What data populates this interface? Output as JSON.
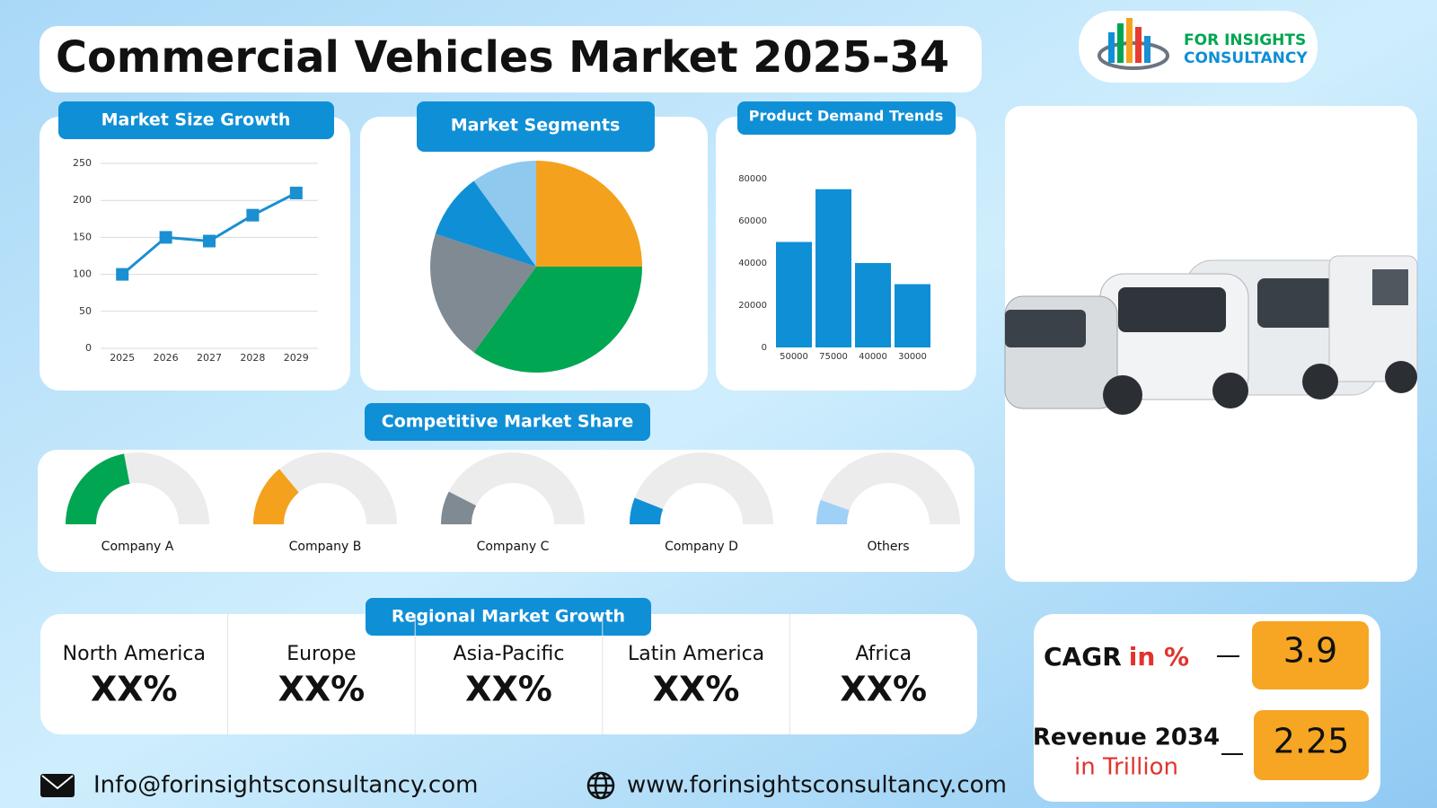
{
  "header": {
    "title": "Commercial Vehicles Market 2025-34",
    "logo_line1": "FOR INSIGHTS",
    "logo_line2": "CONSULTANCY"
  },
  "chart_data": [
    {
      "type": "line",
      "title": "Market Size Growth",
      "categories": [
        "2025",
        "2026",
        "2027",
        "2028",
        "2029"
      ],
      "values": [
        100,
        150,
        145,
        180,
        210
      ],
      "color": "#1a8fd1",
      "ylim": [
        0,
        250
      ],
      "yticks": [
        0,
        50,
        100,
        150,
        200,
        250
      ],
      "grid": true
    },
    {
      "type": "pie",
      "title": "Market Segments",
      "values": [
        25,
        35,
        20,
        10,
        10
      ],
      "colors": [
        "#f4a21d",
        "#00a651",
        "#7f8a93",
        "#0f8fd6",
        "#8fc9ee"
      ]
    },
    {
      "type": "bar",
      "title": "Product Demand Trends",
      "categories": [
        "50000",
        "75000",
        "40000",
        "30000"
      ],
      "values": [
        50000,
        75000,
        40000,
        30000
      ],
      "color": "#0f8fd6",
      "ylim": [
        0,
        80000
      ],
      "yticks": [
        0,
        20000,
        40000,
        60000,
        80000
      ],
      "grid": false
    },
    {
      "type": "gauge",
      "title": "Competitive Market Share",
      "categories": [
        "Company A",
        "Company B",
        "Company C",
        "Company D",
        "Others"
      ],
      "values": [
        44,
        28,
        15,
        12,
        11
      ],
      "colors": [
        "#00a651",
        "#f4a21d",
        "#7f8a93",
        "#0f8fd6",
        "#9fd0f5"
      ]
    }
  ],
  "regional": {
    "title": "Regional Market Growth",
    "regions": [
      {
        "name": "North America",
        "value": "XX%"
      },
      {
        "name": "Europe",
        "value": "XX%"
      },
      {
        "name": "Asia-Pacific",
        "value": "XX%"
      },
      {
        "name": "Latin America",
        "value": "XX%"
      },
      {
        "name": "Africa",
        "value": "XX%"
      }
    ]
  },
  "kpis": {
    "cagr": {
      "label": "CAGR",
      "unit": "in %",
      "value": 3.9
    },
    "revenue": {
      "label": "Revenue 2034",
      "unit": "in Trillion",
      "value": 2.25
    }
  },
  "footer": {
    "email": "Info@forinsightsconsultancy.com",
    "website": "www.forinsightsconsultancy.com"
  }
}
